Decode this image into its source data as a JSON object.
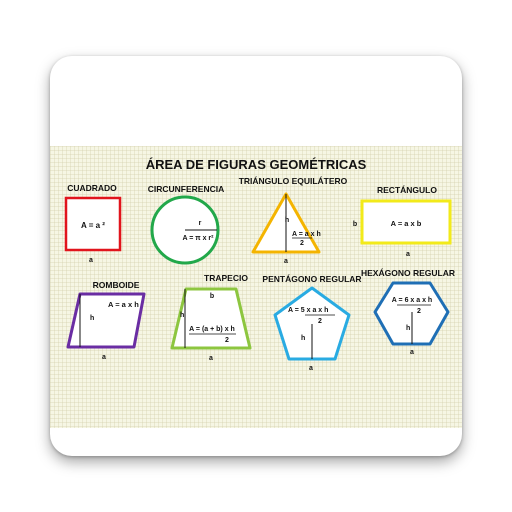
{
  "title": "ÁREA DE FIGURAS GEOMÉTRICAS",
  "shapes": {
    "cuadrado": {
      "name": "CUADRADO",
      "formula": "A = a ²",
      "side": "a",
      "color": "#e1141c"
    },
    "circunferencia": {
      "name": "CIRCUNFERENCIA",
      "formula": "A = π x r²",
      "radius": "r",
      "color": "#22a84a"
    },
    "triangulo": {
      "name": "TRIÁNGULO EQUILÁTERO",
      "formula_num": "A = a x h",
      "formula_den": "2",
      "height": "h",
      "base": "a",
      "color": "#f4b400"
    },
    "rectangulo": {
      "name": "RECTÁNGULO",
      "formula": "A = a  x b",
      "side_b": "b",
      "side_a": "a",
      "color": "#f2ea1a"
    },
    "romboide": {
      "name": "ROMBOIDE",
      "formula": "A = a x h",
      "height": "h",
      "base": "a",
      "color": "#6a2da3"
    },
    "trapecio": {
      "name": "TRAPECIO",
      "formula_num": "A = (a + b) x h",
      "formula_den": "2",
      "top": "b",
      "height": "h",
      "base": "a",
      "color": "#8dc63f"
    },
    "pentagono": {
      "name": "PENTÁGONO REGULAR",
      "formula_num": "A = 5 x a x h",
      "formula_den": "2",
      "height": "h",
      "base": "a",
      "color": "#29abe2"
    },
    "hexagono": {
      "name": "HEXÁGONO REGULAR",
      "formula_num": "A = 6 x a x h",
      "formula_den": "2",
      "height": "h",
      "base": "a",
      "color": "#1f6fb5"
    }
  }
}
